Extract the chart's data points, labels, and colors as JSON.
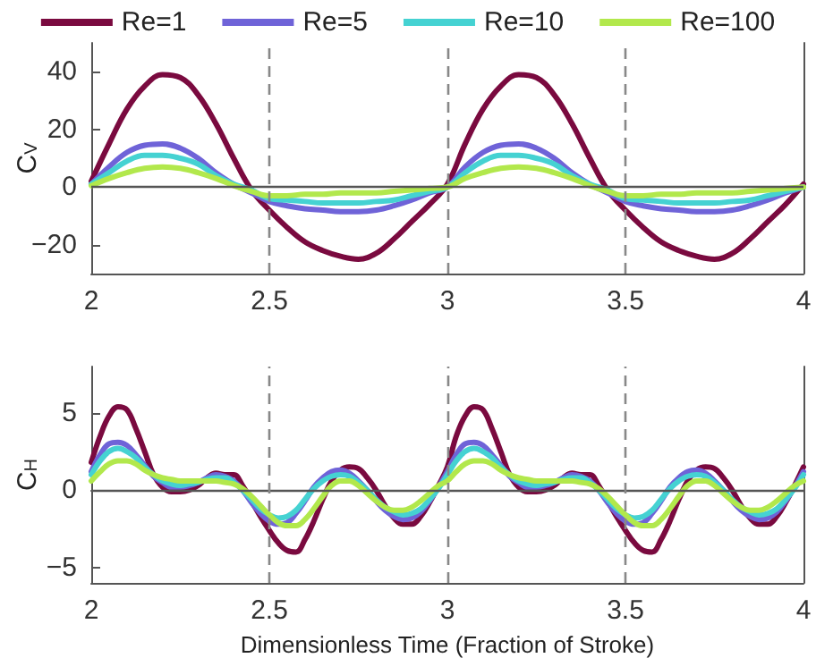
{
  "chart_data": [
    {
      "type": "line",
      "ylabel": "C$_{V}$",
      "xlim": [
        2,
        4
      ],
      "xticks": [
        2,
        2.5,
        3,
        3.5,
        4
      ],
      "ylim": [
        -30,
        50
      ],
      "yticks": [
        -20,
        0,
        20,
        40
      ],
      "grid": false,
      "legend": "top",
      "marker": "none",
      "x": [
        2,
        2.05,
        2.1,
        2.15,
        2.2,
        2.25,
        2.3,
        2.35,
        2.4,
        2.45,
        2.5,
        2.55,
        2.6,
        2.65,
        2.7,
        2.75,
        2.8,
        2.85,
        2.9,
        2.95,
        3,
        3.05,
        3.1,
        3.15,
        3.2,
        3.25,
        3.3,
        3.35,
        3.4,
        3.45,
        3.5,
        3.55,
        3.6,
        3.65,
        3.7,
        3.75,
        3.8,
        3.85,
        3.9,
        3.95,
        4
      ],
      "series": [
        {
          "name": "Re=1",
          "color": "#7a0a3f",
          "values": [
            2,
            15,
            27,
            35,
            39,
            38,
            32,
            22,
            10,
            -1,
            -8,
            -14,
            -19,
            -22,
            -24,
            -25,
            -23,
            -18,
            -12,
            -6,
            1,
            15,
            27,
            35,
            39,
            38,
            32,
            22,
            10,
            -1,
            -8,
            -14,
            -19,
            -22,
            -24,
            -25,
            -23,
            -18,
            -12,
            -6,
            1
          ]
        },
        {
          "name": "Re=5",
          "color": "#6f63d8",
          "values": [
            1,
            7,
            12,
            14.5,
            15,
            13.5,
            10,
            5,
            1,
            -2,
            -5,
            -6.5,
            -7.5,
            -8,
            -8.5,
            -8.5,
            -8,
            -6.5,
            -4.5,
            -2,
            0,
            7,
            12,
            14.5,
            15,
            13.5,
            10,
            5,
            1,
            -2,
            -5,
            -6.5,
            -7.5,
            -8,
            -8.5,
            -8.5,
            -8,
            -6.5,
            -4.5,
            -2,
            0
          ]
        },
        {
          "name": "Re=10",
          "color": "#45d2d2",
          "values": [
            1,
            5,
            9,
            11,
            11,
            10,
            8,
            4,
            1,
            -1,
            -4,
            -4.5,
            -5,
            -5.5,
            -5.5,
            -5.5,
            -5,
            -4.5,
            -3,
            -1.5,
            0,
            5,
            9,
            11,
            11,
            10,
            8,
            4,
            1,
            -1,
            -4,
            -4.5,
            -5,
            -5.5,
            -5.5,
            -5.5,
            -5,
            -4.5,
            -3,
            -1.5,
            0
          ]
        },
        {
          "name": "Re=100",
          "color": "#b2e84c",
          "values": [
            0.5,
            3,
            5,
            6.5,
            7,
            6.5,
            5,
            3,
            0.5,
            -1.5,
            -3,
            -3,
            -2.5,
            -2.5,
            -2,
            -2,
            -2,
            -1.5,
            -1,
            -0.5,
            0,
            3,
            5,
            6.5,
            7,
            6.5,
            5,
            3,
            0.5,
            -1.5,
            -3,
            -3,
            -2.5,
            -2.5,
            -2,
            -2,
            -2,
            -1.5,
            -1,
            -0.5,
            0
          ]
        }
      ],
      "ref_lines": [
        {
          "axis": "y",
          "value": 0,
          "color": "#555555",
          "line_style": "solid"
        },
        {
          "axis": "x",
          "value": 2.5,
          "color": "#888888",
          "line_style": "dashed"
        },
        {
          "axis": "x",
          "value": 3,
          "color": "#888888",
          "line_style": "dashed"
        },
        {
          "axis": "x",
          "value": 3.5,
          "color": "#888888",
          "line_style": "dashed"
        }
      ]
    },
    {
      "type": "line",
      "ylabel": "C$_{H}$",
      "xlabel": "Dimensionless Time (Fraction of Stroke)",
      "xlim": [
        2,
        4
      ],
      "xticks": [
        2,
        2.5,
        3,
        3.5,
        4
      ],
      "ylim": [
        -6,
        8
      ],
      "yticks": [
        -5,
        0,
        5
      ],
      "grid": false,
      "legend": false,
      "marker": "none",
      "x": [
        2,
        2.025,
        2.05,
        2.075,
        2.1,
        2.125,
        2.15,
        2.175,
        2.2,
        2.225,
        2.25,
        2.275,
        2.3,
        2.325,
        2.35,
        2.375,
        2.4,
        2.425,
        2.45,
        2.475,
        2.5,
        2.525,
        2.55,
        2.575,
        2.6,
        2.625,
        2.65,
        2.675,
        2.7,
        2.725,
        2.75,
        2.775,
        2.8,
        2.825,
        2.85,
        2.875,
        2.9,
        2.925,
        2.95,
        2.975,
        3,
        3.025,
        3.05,
        3.075,
        3.1,
        3.125,
        3.15,
        3.175,
        3.2,
        3.225,
        3.25,
        3.275,
        3.3,
        3.325,
        3.35,
        3.375,
        3.4,
        3.425,
        3.45,
        3.475,
        3.5,
        3.525,
        3.55,
        3.575,
        3.6,
        3.625,
        3.65,
        3.675,
        3.7,
        3.725,
        3.75,
        3.775,
        3.8,
        3.825,
        3.85,
        3.875,
        3.9,
        3.925,
        3.95,
        3.975,
        4
      ],
      "series": [
        {
          "color": "#7a0a3f",
          "values": [
            1.8,
            3.5,
            4.8,
            5.4,
            5.2,
            4,
            2.5,
            1,
            0.2,
            -0.1,
            -0.1,
            0,
            0.3,
            0.8,
            1.1,
            1,
            1,
            0.3,
            -0.7,
            -1.7,
            -2.6,
            -3.4,
            -3.9,
            -4,
            -3.2,
            -2,
            -0.6,
            0.6,
            1.3,
            1.5,
            1.4,
            0.8,
            0,
            -1,
            -1.8,
            -2.2,
            -2.2,
            -1.7,
            -0.8,
            0.3,
            1.5,
            3.5,
            4.8,
            5.4,
            5.2,
            4,
            2.5,
            1,
            0.2,
            -0.1,
            -0.1,
            0,
            0.3,
            0.8,
            1.1,
            1,
            1,
            0.3,
            -0.7,
            -1.7,
            -2.6,
            -3.4,
            -3.9,
            -4,
            -3.2,
            -2,
            -0.6,
            0.6,
            1.3,
            1.5,
            1.4,
            0.8,
            0,
            -1,
            -1.8,
            -2.2,
            -2.2,
            -1.7,
            -0.8,
            0.3,
            1.5
          ]
        },
        {
          "color": "#6f63d8",
          "values": [
            1.2,
            2.3,
            3,
            3.1,
            2.9,
            2.3,
            1.6,
            0.9,
            0.5,
            0.2,
            0.2,
            0.3,
            0.5,
            0.8,
            1,
            0.9,
            0.6,
            0,
            -0.8,
            -1.5,
            -2,
            -2.2,
            -2.1,
            -1.5,
            -0.7,
            0.2,
            0.8,
            1.2,
            1.3,
            1.1,
            0.6,
            0,
            -0.7,
            -1.3,
            -1.7,
            -1.9,
            -1.8,
            -1.4,
            -0.7,
            0.2,
            1.2,
            2.3,
            3,
            3.1,
            2.9,
            2.3,
            1.6,
            0.9,
            0.5,
            0.2,
            0.2,
            0.3,
            0.5,
            0.8,
            1,
            0.9,
            0.6,
            0,
            -0.8,
            -1.5,
            -2,
            -2.2,
            -2.1,
            -1.5,
            -0.7,
            0.2,
            0.8,
            1.2,
            1.3,
            1.1,
            0.6,
            0,
            -0.7,
            -1.3,
            -1.7,
            -1.9,
            -1.8,
            -1.4,
            -0.7,
            0.2,
            1.2
          ]
        },
        {
          "color": "#45d2d2",
          "values": [
            1,
            1.9,
            2.5,
            2.7,
            2.5,
            2.1,
            1.5,
            1,
            0.6,
            0.4,
            0.3,
            0.4,
            0.5,
            0.7,
            0.8,
            0.8,
            0.5,
            0,
            -0.6,
            -1.2,
            -1.6,
            -1.8,
            -1.7,
            -1.3,
            -0.6,
            0.1,
            0.6,
            0.9,
            1,
            0.9,
            0.5,
            0,
            -0.6,
            -1.1,
            -1.4,
            -1.6,
            -1.5,
            -1.2,
            -0.6,
            0.1,
            1,
            1.9,
            2.5,
            2.7,
            2.5,
            2.1,
            1.5,
            1,
            0.6,
            0.4,
            0.3,
            0.4,
            0.5,
            0.7,
            0.8,
            0.8,
            0.5,
            0,
            -0.6,
            -1.2,
            -1.6,
            -1.8,
            -1.7,
            -1.3,
            -0.6,
            0.1,
            0.6,
            0.9,
            1,
            0.9,
            0.5,
            0,
            -0.6,
            -1.1,
            -1.4,
            -1.6,
            -1.5,
            -1.2,
            -0.6,
            0.1,
            1
          ]
        },
        {
          "color": "#b2e84c",
          "values": [
            0.6,
            1.2,
            1.7,
            1.9,
            1.9,
            1.7,
            1.3,
            1,
            0.8,
            0.7,
            0.6,
            0.6,
            0.6,
            0.6,
            0.6,
            0.5,
            0.4,
            0.1,
            -0.4,
            -1,
            -1.6,
            -2.1,
            -2.3,
            -2.3,
            -1.9,
            -1.2,
            -0.4,
            0.3,
            0.6,
            0.6,
            0.3,
            -0.2,
            -0.7,
            -1.1,
            -1.3,
            -1.3,
            -1.1,
            -0.7,
            -0.2,
            0.3,
            0.6,
            1.2,
            1.7,
            1.9,
            1.9,
            1.7,
            1.3,
            1,
            0.8,
            0.7,
            0.6,
            0.6,
            0.6,
            0.6,
            0.6,
            0.5,
            0.4,
            0.1,
            -0.4,
            -1,
            -1.6,
            -2.1,
            -2.3,
            -2.3,
            -1.9,
            -1.2,
            -0.4,
            0.3,
            0.6,
            0.6,
            0.3,
            -0.2,
            -0.7,
            -1.1,
            -1.3,
            -1.3,
            -1.1,
            -0.7,
            -0.2,
            0.3,
            0.6
          ]
        }
      ],
      "ref_lines": [
        {
          "axis": "y",
          "value": 0,
          "color": "#555555",
          "line_style": "solid"
        },
        {
          "axis": "x",
          "value": 2.5,
          "color": "#888888",
          "line_style": "dashed"
        },
        {
          "axis": "x",
          "value": 3,
          "color": "#888888",
          "line_style": "dashed"
        },
        {
          "axis": "x",
          "value": 3.5,
          "color": "#888888",
          "line_style": "dashed"
        }
      ]
    }
  ]
}
